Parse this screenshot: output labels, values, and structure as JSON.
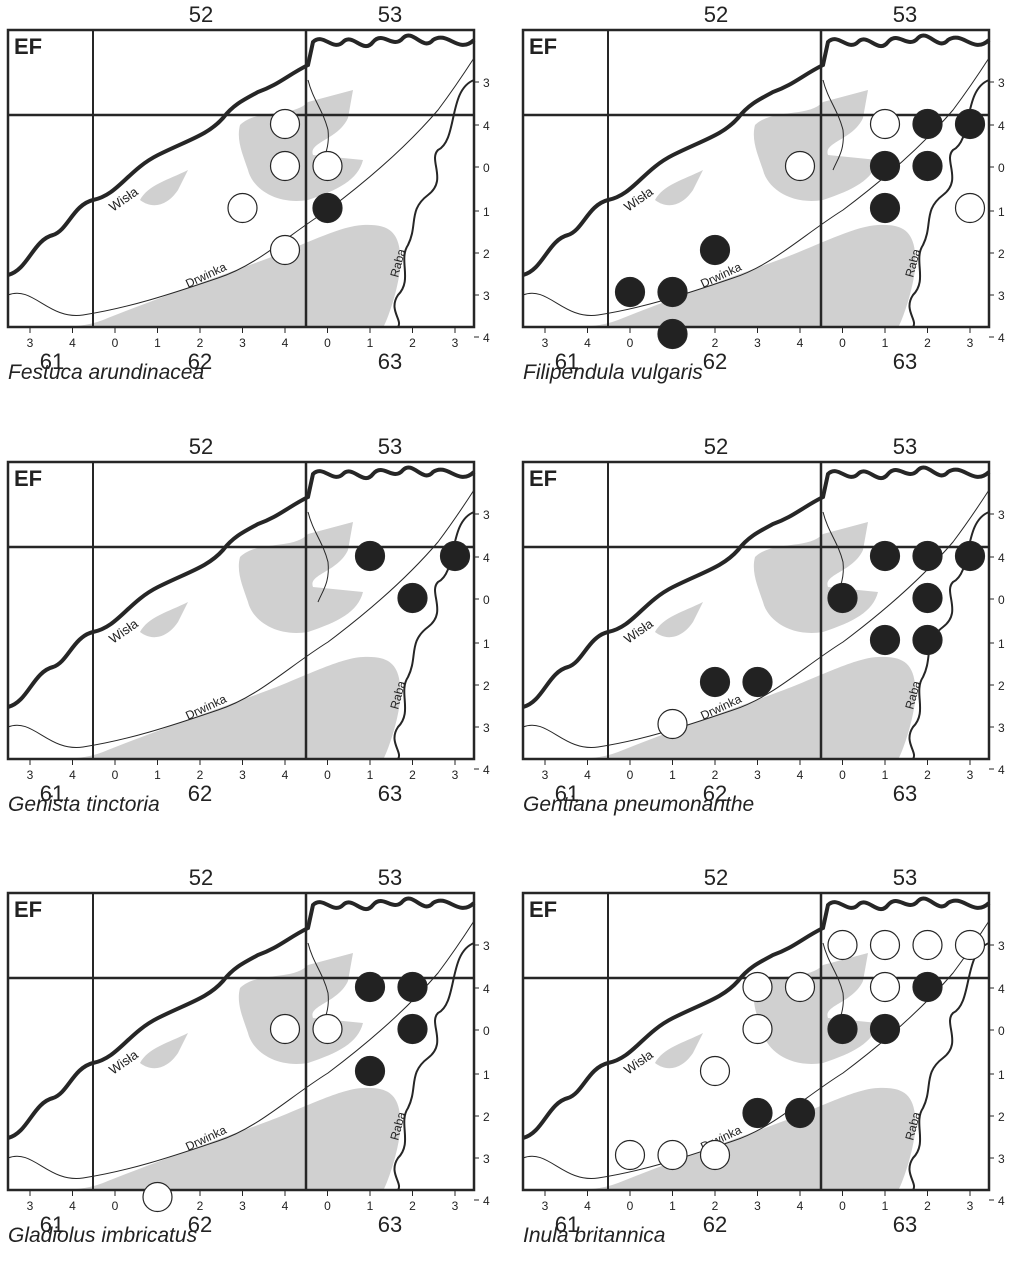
{
  "map_label": "EF",
  "rivers": {
    "wisla": "Wisła",
    "drwinka": "Drwinka",
    "raba": "Raba"
  },
  "col_major_top": [
    "52",
    "53"
  ],
  "col_major_bottom": [
    "61",
    "62",
    "63"
  ],
  "col_ticks": [
    "3",
    "4",
    "0",
    "1",
    "2",
    "3",
    "4",
    "0",
    "1",
    "2",
    "3"
  ],
  "row_ticks": [
    "3",
    "4",
    "0",
    "1",
    "2",
    "3",
    "4"
  ],
  "legend_symbols": {
    "filled": "filled circle",
    "open": "open circle"
  },
  "colors": {
    "water_gray": "#d0d0d0",
    "line": "#262626",
    "filled_dot": "#222222"
  },
  "maps": [
    {
      "species": "Festuca arundinacea",
      "records": [
        {
          "cell": "62-4 / row 4",
          "col": 6,
          "row": 1,
          "filled": false
        },
        {
          "cell": "62-4 / row 0",
          "col": 6,
          "row": 2,
          "filled": false
        },
        {
          "cell": "63-0 / row 0",
          "col": 7,
          "row": 2,
          "filled": false
        },
        {
          "cell": "62-3 / row 1",
          "col": 5,
          "row": 3,
          "filled": false
        },
        {
          "cell": "63-0 / row 1",
          "col": 7,
          "row": 3,
          "filled": true
        },
        {
          "cell": "62-4 / row 2",
          "col": 6,
          "row": 4,
          "filled": false
        }
      ]
    },
    {
      "species": "Filipendula vulgaris",
      "records": [
        {
          "cell": "63-1 / row 4",
          "col": 8,
          "row": 1,
          "filled": false
        },
        {
          "cell": "63-2 / row 4",
          "col": 9,
          "row": 1,
          "filled": true
        },
        {
          "cell": "63-3 / row 4",
          "col": 10,
          "row": 1,
          "filled": true
        },
        {
          "cell": "62-4 / row 0",
          "col": 6,
          "row": 2,
          "filled": false
        },
        {
          "cell": "63-1 / row 0",
          "col": 8,
          "row": 2,
          "filled": true
        },
        {
          "cell": "63-2 / row 0",
          "col": 9,
          "row": 2,
          "filled": true
        },
        {
          "cell": "63-1 / row 1",
          "col": 8,
          "row": 3,
          "filled": true
        },
        {
          "cell": "63-3 / row 1",
          "col": 10,
          "row": 3,
          "filled": false
        },
        {
          "cell": "62-2 / row 2",
          "col": 4,
          "row": 4,
          "filled": true
        },
        {
          "cell": "62-0 / row 3",
          "col": 2,
          "row": 5,
          "filled": true
        },
        {
          "cell": "62-1 / row 3",
          "col": 3,
          "row": 5,
          "filled": true
        },
        {
          "cell": "62-1 / row 4",
          "col": 3,
          "row": 6,
          "filled": true
        }
      ]
    },
    {
      "species": "Genista tinctoria",
      "records": [
        {
          "cell": "63-1 / row 4",
          "col": 8,
          "row": 1,
          "filled": true
        },
        {
          "cell": "63-3 / row 4",
          "col": 10,
          "row": 1,
          "filled": true
        },
        {
          "cell": "63-2 / row 0",
          "col": 9,
          "row": 2,
          "filled": true
        }
      ]
    },
    {
      "species": "Gentiana pneumonanthe",
      "records": [
        {
          "cell": "63-1 / row 4",
          "col": 8,
          "row": 1,
          "filled": true
        },
        {
          "cell": "63-2 / row 4",
          "col": 9,
          "row": 1,
          "filled": true
        },
        {
          "cell": "63-3 / row 4",
          "col": 10,
          "row": 1,
          "filled": true
        },
        {
          "cell": "63-0 / row 0",
          "col": 7,
          "row": 2,
          "filled": true
        },
        {
          "cell": "63-2 / row 0",
          "col": 9,
          "row": 2,
          "filled": true
        },
        {
          "cell": "63-1 / row 1",
          "col": 8,
          "row": 3,
          "filled": true
        },
        {
          "cell": "63-2 / row 1",
          "col": 9,
          "row": 3,
          "filled": true
        },
        {
          "cell": "62-2 / row 2",
          "col": 4,
          "row": 4,
          "filled": true
        },
        {
          "cell": "62-3 / row 2",
          "col": 5,
          "row": 4,
          "filled": true
        },
        {
          "cell": "62-1 / row 3",
          "col": 3,
          "row": 5,
          "filled": false
        }
      ]
    },
    {
      "species": "Gladiolus imbricatus",
      "records": [
        {
          "cell": "63-1 / row 4",
          "col": 8,
          "row": 1,
          "filled": true
        },
        {
          "cell": "63-2 / row 4",
          "col": 9,
          "row": 1,
          "filled": true
        },
        {
          "cell": "62-4 / row 0",
          "col": 6,
          "row": 2,
          "filled": false
        },
        {
          "cell": "63-0 / row 0",
          "col": 7,
          "row": 2,
          "filled": false
        },
        {
          "cell": "63-2 / row 0",
          "col": 9,
          "row": 2,
          "filled": true
        },
        {
          "cell": "63-1 / row 1",
          "col": 8,
          "row": 3,
          "filled": true
        },
        {
          "cell": "62-1 / row 4",
          "col": 3,
          "row": 6,
          "filled": false
        }
      ]
    },
    {
      "species": "Inula britannica",
      "records": [
        {
          "cell": "63-0 / row 3",
          "col": 7,
          "row": 0,
          "filled": false
        },
        {
          "cell": "63-1 / row 3",
          "col": 8,
          "row": 0,
          "filled": false
        },
        {
          "cell": "63-2 / row 3",
          "col": 9,
          "row": 0,
          "filled": false
        },
        {
          "cell": "63-3 / row 3",
          "col": 10,
          "row": 0,
          "filled": false
        },
        {
          "cell": "62-3 / row 4",
          "col": 5,
          "row": 1,
          "filled": false
        },
        {
          "cell": "62-4 / row 4",
          "col": 6,
          "row": 1,
          "filled": false
        },
        {
          "cell": "63-1 / row 4",
          "col": 8,
          "row": 1,
          "filled": false
        },
        {
          "cell": "63-2 / row 4",
          "col": 9,
          "row": 1,
          "filled": true
        },
        {
          "cell": "62-3 / row 0",
          "col": 5,
          "row": 2,
          "filled": false
        },
        {
          "cell": "63-0 / row 0",
          "col": 7,
          "row": 2,
          "filled": true
        },
        {
          "cell": "63-1 / row 0",
          "col": 8,
          "row": 2,
          "filled": true
        },
        {
          "cell": "62-2 / row 1",
          "col": 4,
          "row": 3,
          "filled": false
        },
        {
          "cell": "62-3 / row 2",
          "col": 5,
          "row": 4,
          "filled": true
        },
        {
          "cell": "62-4 / row 2",
          "col": 6,
          "row": 4,
          "filled": true
        },
        {
          "cell": "62-0 / row 3",
          "col": 2,
          "row": 5,
          "filled": false
        },
        {
          "cell": "62-1 / row 3",
          "col": 3,
          "row": 5,
          "filled": false
        },
        {
          "cell": "62-2 / row 3",
          "col": 4,
          "row": 5,
          "filled": false
        }
      ]
    }
  ]
}
